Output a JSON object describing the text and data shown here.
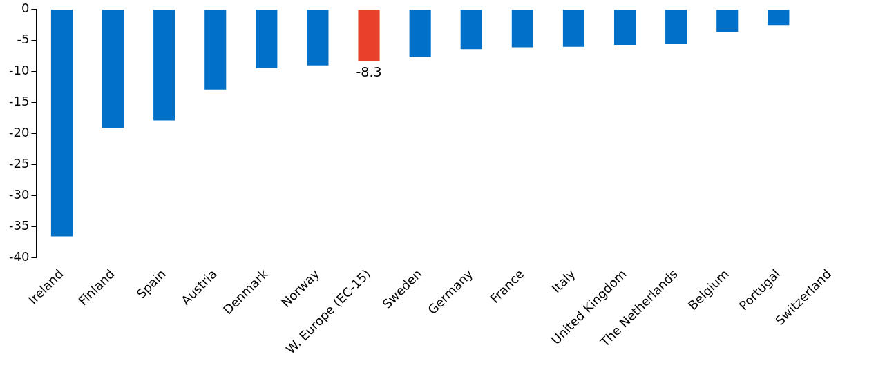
{
  "chart_data": {
    "type": "bar",
    "categories": [
      "Ireland",
      "Finland",
      "Spain",
      "Austria",
      "Denmark",
      "Norway",
      "W. Europe (EC-15)",
      "Sweden",
      "Germany",
      "France",
      "Italy",
      "United Kingdom",
      "The Netherlands",
      "Belgium",
      "Portugal",
      "Switzerland"
    ],
    "values": [
      -36.6,
      -19.1,
      -17.9,
      -12.9,
      -9.5,
      -9.0,
      -8.3,
      -7.7,
      -6.4,
      -6.1,
      -6.0,
      -5.7,
      -5.6,
      -3.6,
      -2.5,
      0
    ],
    "colors": [
      "#0070c8",
      "#0070c8",
      "#0070c8",
      "#0070c8",
      "#0070c8",
      "#0070c8",
      "#e8402a",
      "#0070c8",
      "#0070c8",
      "#0070c8",
      "#0070c8",
      "#0070c8",
      "#0070c8",
      "#0070c8",
      "#0070c8",
      "#0070c8"
    ],
    "value_labels": [
      null,
      null,
      null,
      null,
      null,
      null,
      "-8.3",
      null,
      null,
      null,
      null,
      null,
      null,
      null,
      null,
      null
    ],
    "ylim": [
      -40,
      0
    ],
    "yticks": [
      -40,
      -35,
      -30,
      -25,
      -20,
      -15,
      -10,
      -5,
      0
    ],
    "grid": false,
    "legend": false
  }
}
